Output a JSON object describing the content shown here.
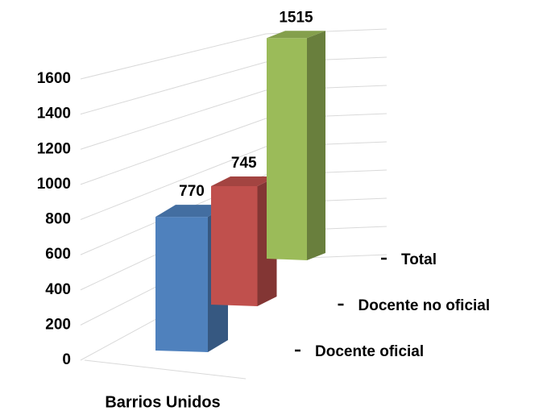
{
  "chart_data": {
    "type": "bar3d",
    "categories": [
      "Barrios Unidos"
    ],
    "series": [
      {
        "name": "Docente oficial",
        "color": "#4f81bd",
        "values": [
          770
        ]
      },
      {
        "name": "Docente no oficial",
        "color": "#c0504d",
        "values": [
          745
        ]
      },
      {
        "name": "Total",
        "color": "#9bbb59",
        "values": [
          1515
        ]
      }
    ],
    "ylim": [
      0,
      1600
    ],
    "yticks": [
      0,
      200,
      400,
      600,
      800,
      1000,
      1200,
      1400,
      1600
    ],
    "grid": true
  }
}
